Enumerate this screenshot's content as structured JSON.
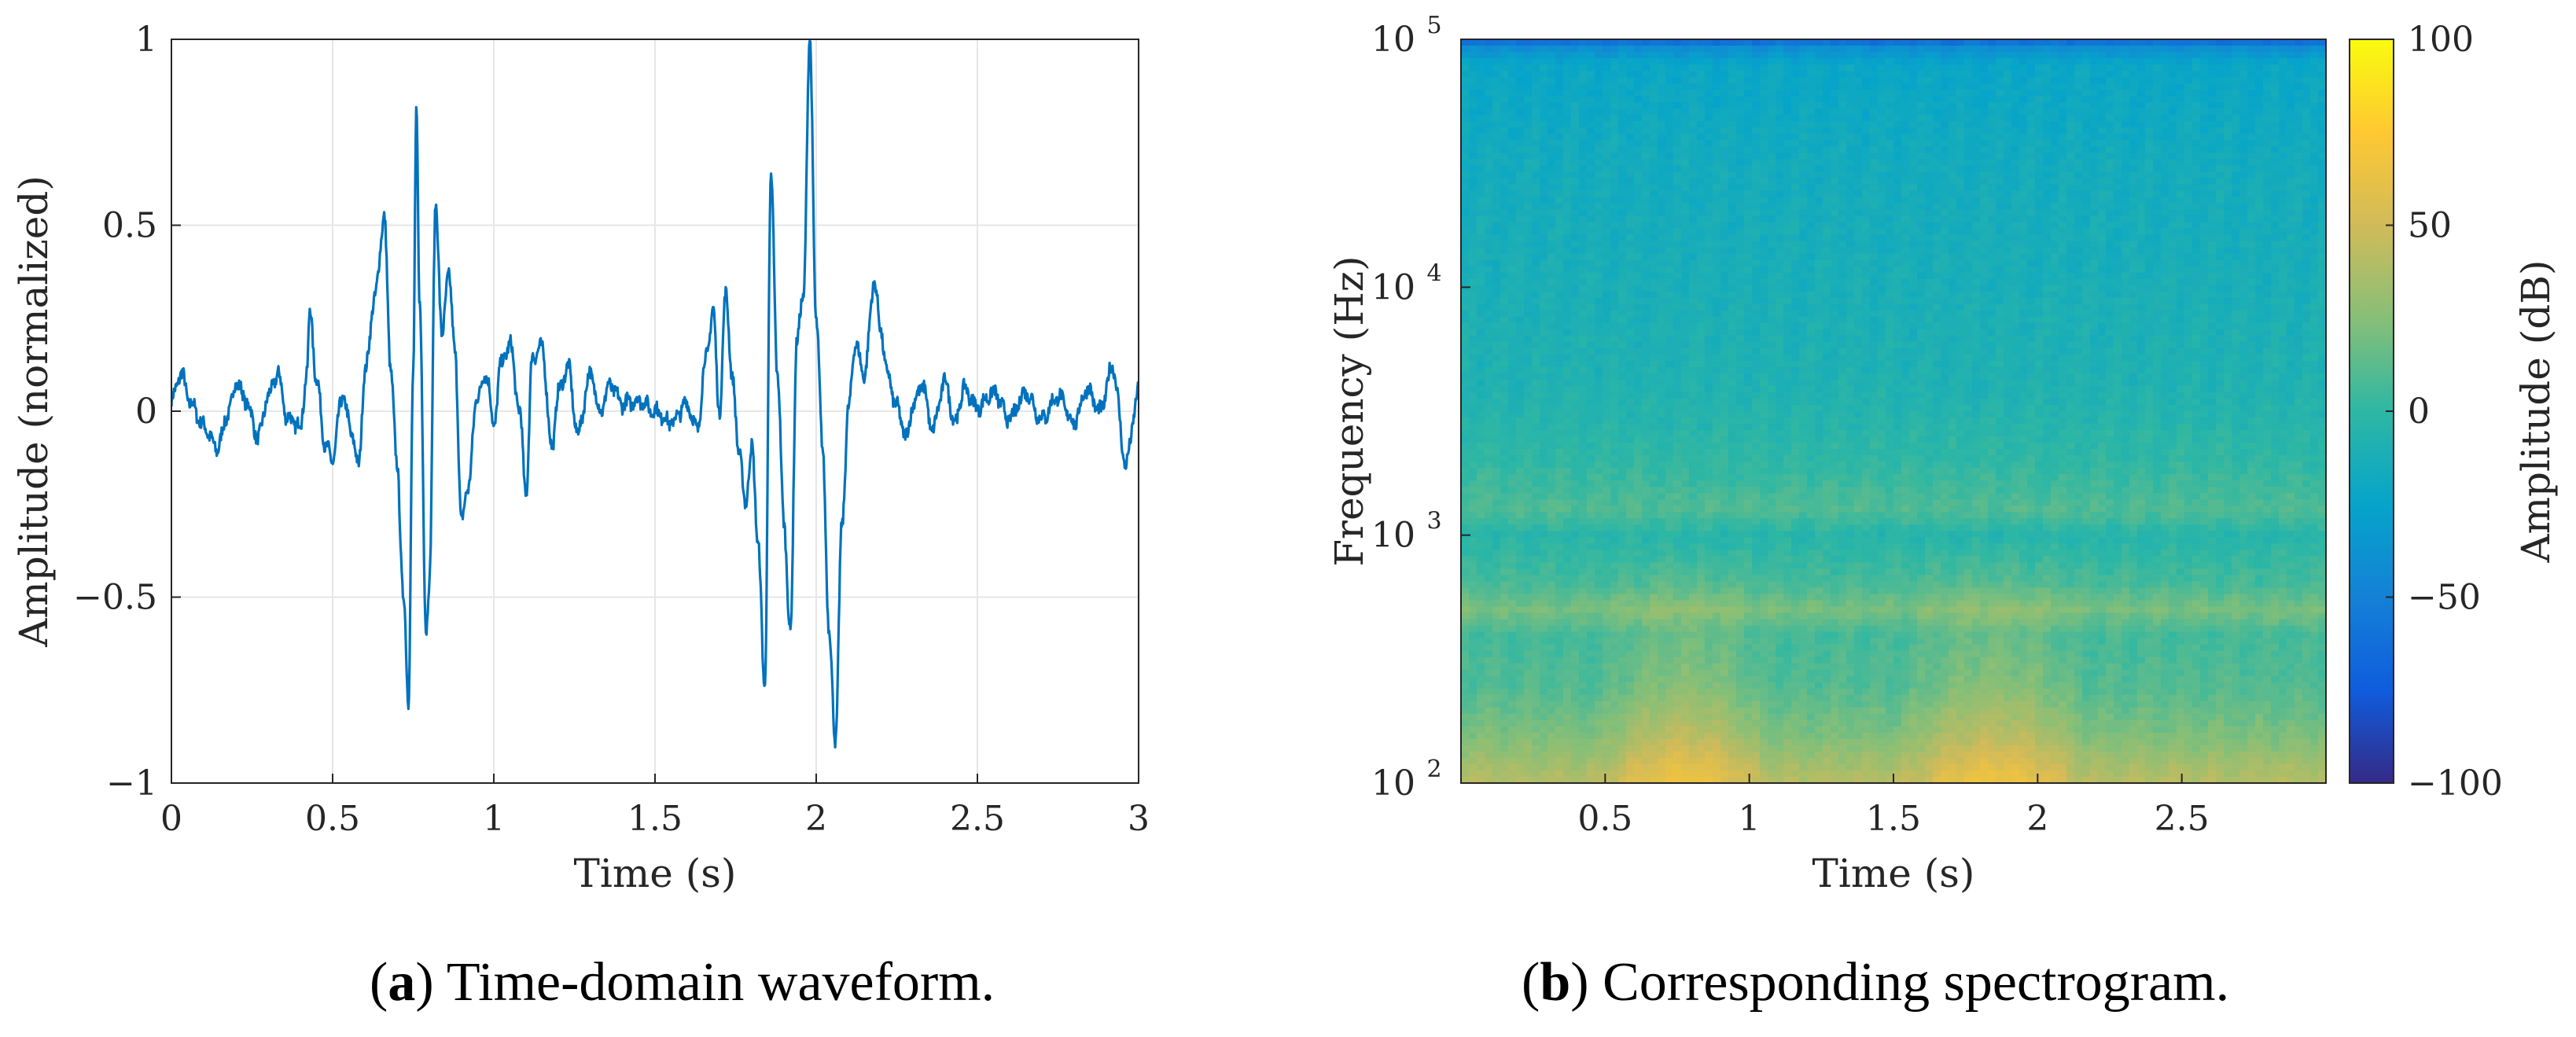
{
  "colors": {
    "line": "#0072BD",
    "grid": "#e6e6e6",
    "axis": "#262626",
    "parula": [
      "#352A87",
      "#0F5CDD",
      "#1481D6",
      "#06A4CA",
      "#2EB7A4",
      "#87BF77",
      "#D1BB59",
      "#FEC832",
      "#F9FB0E"
    ]
  },
  "captions": {
    "a_letter": "a",
    "a_text": " Time-domain waveform.",
    "b_letter": "b",
    "b_text": " Corresponding spectrogram."
  },
  "chart_data": [
    {
      "type": "line",
      "xlabel": "Time (s)",
      "ylabel": "Amplitude (normalized)",
      "xlim": [
        0,
        3
      ],
      "ylim": [
        -1,
        1
      ],
      "grid": true,
      "xticks": [
        0,
        0.5,
        1,
        1.5,
        2,
        2.5,
        3
      ],
      "xtick_labels": [
        "0",
        "0.5",
        "1",
        "1.5",
        "2",
        "2.5",
        "3"
      ],
      "yticks": [
        -1,
        -0.5,
        0,
        0.5,
        1
      ],
      "ytick_labels": [
        "−1",
        "−0.5",
        "0",
        "0.5",
        "1"
      ],
      "series": [
        {
          "name": "waveform",
          "x": [
            0,
            0.03,
            0.06,
            0.1,
            0.14,
            0.18,
            0.2,
            0.23,
            0.27,
            0.3,
            0.33,
            0.36,
            0.4,
            0.42,
            0.43,
            0.45,
            0.48,
            0.5,
            0.53,
            0.56,
            0.58,
            0.6,
            0.63,
            0.66,
            0.68,
            0.7,
            0.72,
            0.735,
            0.75,
            0.76,
            0.77,
            0.79,
            0.8,
            0.82,
            0.84,
            0.86,
            0.88,
            0.9,
            0.92,
            0.95,
            0.98,
            1.0,
            1.02,
            1.05,
            1.08,
            1.1,
            1.12,
            1.15,
            1.18,
            1.2,
            1.23,
            1.26,
            1.3,
            1.33,
            1.36,
            1.4,
            1.45,
            1.5,
            1.55,
            1.6,
            1.63,
            1.66,
            1.68,
            1.7,
            1.72,
            1.74,
            1.76,
            1.78,
            1.8,
            1.82,
            1.84,
            1.86,
            1.88,
            1.9,
            1.92,
            1.94,
            1.96,
            1.98,
            2.0,
            2.02,
            2.04,
            2.06,
            2.08,
            2.1,
            2.12,
            2.15,
            2.18,
            2.2,
            2.22,
            2.25,
            2.28,
            2.3,
            2.33,
            2.36,
            2.4,
            2.43,
            2.46,
            2.5,
            2.55,
            2.6,
            2.65,
            2.7,
            2.75,
            2.8,
            2.84,
            2.88,
            2.92,
            2.96,
            3.0
          ],
          "y": [
            0.03,
            0.1,
            0.02,
            -0.04,
            -0.1,
            0.0,
            0.08,
            0.03,
            -0.07,
            0.04,
            0.1,
            -0.02,
            -0.04,
            0.1,
            0.27,
            0.08,
            -0.1,
            -0.13,
            0.04,
            -0.06,
            -0.15,
            0.1,
            0.3,
            0.52,
            0.12,
            -0.15,
            -0.5,
            -0.78,
            0.1,
            0.8,
            0.3,
            -0.6,
            -0.45,
            0.55,
            0.2,
            0.38,
            0.15,
            -0.3,
            -0.2,
            0.05,
            0.1,
            -0.05,
            0.12,
            0.18,
            0.0,
            -0.22,
            0.15,
            0.17,
            -0.1,
            0.05,
            0.12,
            -0.06,
            0.1,
            0.0,
            0.07,
            0.02,
            0.03,
            0.0,
            -0.03,
            0.02,
            -0.05,
            0.15,
            0.27,
            0.0,
            0.32,
            0.08,
            -0.1,
            -0.25,
            -0.1,
            -0.35,
            -0.75,
            0.62,
            0.1,
            -0.3,
            -0.6,
            0.2,
            0.3,
            0.99,
            0.25,
            -0.1,
            -0.6,
            -0.88,
            -0.3,
            0.0,
            0.18,
            0.1,
            0.35,
            0.22,
            0.1,
            0.01,
            -0.07,
            0.02,
            0.07,
            -0.05,
            0.08,
            -0.03,
            0.06,
            0.01,
            0.05,
            -0.02,
            0.05,
            -0.02,
            0.04,
            -0.03,
            0.06,
            0.0,
            0.12,
            -0.14,
            0.05
          ]
        }
      ]
    },
    {
      "type": "heatmap",
      "xlabel": "Time (s)",
      "ylabel": "Frequency (Hz)",
      "xlim": [
        0,
        3
      ],
      "yscale": "log",
      "ylim": [
        100,
        100000
      ],
      "xticks": [
        0.5,
        1,
        1.5,
        2,
        2.5
      ],
      "xtick_labels": [
        "0.5",
        "1",
        "1.5",
        "2",
        "2.5"
      ],
      "ytick_values": [
        100,
        1000,
        10000,
        100000
      ],
      "ytick_base": "10",
      "ytick_exponents": [
        "2",
        "3",
        "4",
        "5"
      ],
      "colorbar": {
        "label": "Amplitude (dB)",
        "range": [
          -100,
          100
        ],
        "ticks": [
          -100,
          -50,
          0,
          50,
          100
        ],
        "tick_labels": [
          "−100",
          "−50",
          "0",
          "50",
          "100"
        ]
      },
      "levels_by_log_frequency": {
        "log10_hz": [
          2.0,
          2.2,
          2.4,
          2.6,
          2.7,
          2.8,
          3.0,
          3.1,
          3.3,
          3.6,
          4.0,
          4.5,
          4.9,
          4.98,
          5.0
        ],
        "db": [
          45,
          25,
          12,
          8,
          22,
          8,
          -4,
          10,
          0,
          -8,
          -12,
          -16,
          -22,
          -45,
          -85
        ]
      },
      "loud_segments_s": [
        [
          0.55,
          1.0
        ],
        [
          1.6,
          2.1
        ]
      ]
    }
  ]
}
